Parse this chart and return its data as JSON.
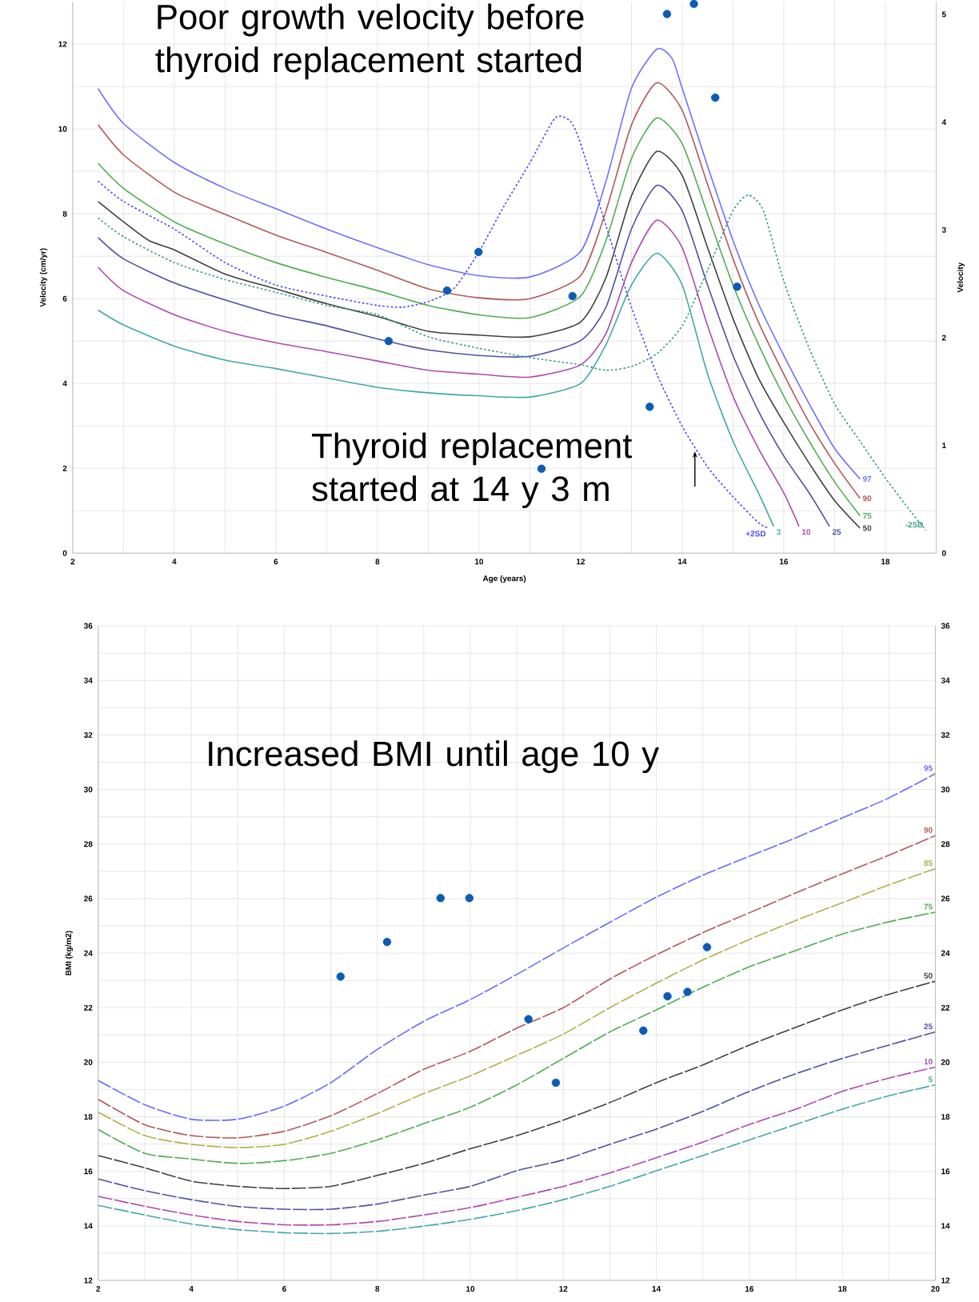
{
  "chart_data": [
    {
      "type": "line",
      "xlabel": "Age (years)",
      "ylabel": "Velocity (cm/yr)",
      "y2label": "Velocity",
      "annotations": [
        "Poor growth velocity before thyroid replacement started",
        {
          "text": "Thyroid replacement started at 14 y 3 m",
          "x": 14.25,
          "y": 2.4
        }
      ],
      "xlim": [
        2,
        19
      ],
      "ylim": [
        0,
        13
      ],
      "xticks": [
        2,
        4,
        6,
        8,
        10,
        12,
        14,
        16,
        18
      ],
      "yticks": [
        0,
        2,
        4,
        6,
        8,
        10,
        12
      ],
      "y2lim": [
        0,
        5.118
      ],
      "y2ticks": [
        0,
        1,
        2,
        3,
        4,
        5
      ],
      "grid": true,
      "series": [
        {
          "name": "97",
          "color": "#7070ff",
          "line_style": "solid",
          "x": [
            2.5,
            3,
            4,
            5,
            6,
            7,
            8,
            9,
            10,
            11,
            12,
            12.5,
            13,
            13.5,
            13.8,
            14,
            14.5,
            15,
            15.5,
            16,
            16.5,
            17,
            17.5
          ],
          "values": [
            10.95,
            10.13,
            9.21,
            8.6,
            8.12,
            7.64,
            7.2,
            6.8,
            6.54,
            6.51,
            7.11,
            8.77,
            10.96,
            11.88,
            11.66,
            10.96,
            9.12,
            7.37,
            5.88,
            4.66,
            3.52,
            2.47,
            1.75
          ]
        },
        {
          "name": "90",
          "color": "#b35959",
          "line_style": "solid",
          "x": [
            2.5,
            3,
            4,
            5,
            6,
            7,
            8,
            9,
            10,
            11,
            12,
            12.5,
            13,
            13.5,
            14,
            14.5,
            15,
            15.5,
            16,
            16.5,
            17,
            17.5
          ],
          "values": [
            10.1,
            9.39,
            8.51,
            7.99,
            7.5,
            7.09,
            6.67,
            6.23,
            6.02,
            6.0,
            6.54,
            8.07,
            10.09,
            11.09,
            10.44,
            8.69,
            6.94,
            5.45,
            4.22,
            3.08,
            2.12,
            1.29
          ]
        },
        {
          "name": "75",
          "color": "#4fae4f",
          "line_style": "solid",
          "x": [
            2.5,
            3,
            4,
            5,
            6,
            7,
            8,
            9,
            10,
            11,
            12,
            12.5,
            13,
            13.5,
            14,
            14.5,
            15,
            15.5,
            16,
            16.5,
            17,
            17.5
          ],
          "values": [
            9.19,
            8.6,
            7.81,
            7.29,
            6.85,
            6.5,
            6.19,
            5.84,
            5.62,
            5.55,
            6.06,
            7.37,
            9.3,
            10.26,
            9.65,
            7.99,
            6.32,
            4.92,
            3.7,
            2.64,
            1.68,
            0.88
          ]
        },
        {
          "name": "50",
          "color": "#404040",
          "line_style": "solid",
          "x": [
            2.5,
            3,
            3.5,
            4,
            5,
            6,
            7,
            8,
            9,
            10,
            11,
            12,
            12.5,
            13,
            13.5,
            14,
            14.5,
            15,
            15.5,
            16,
            16.5,
            17,
            17.5
          ],
          "values": [
            8.29,
            7.81,
            7.37,
            7.15,
            6.58,
            6.23,
            5.88,
            5.58,
            5.23,
            5.14,
            5.1,
            5.45,
            6.5,
            8.42,
            9.47,
            8.9,
            7.2,
            5.53,
            4.13,
            3.08,
            2.12,
            1.24,
            0.59
          ]
        },
        {
          "name": "25",
          "color": "#5050a8",
          "line_style": "solid",
          "x": [
            2.5,
            3,
            4,
            5,
            6,
            7,
            8,
            9,
            10,
            11,
            12,
            12.5,
            13,
            13.5,
            14,
            14.5,
            15,
            15.5,
            16,
            16.5,
            16.9
          ],
          "values": [
            7.44,
            6.94,
            6.37,
            5.97,
            5.62,
            5.36,
            5.05,
            4.79,
            4.66,
            4.64,
            5.01,
            5.8,
            7.64,
            8.67,
            8.07,
            6.32,
            4.66,
            3.35,
            2.29,
            1.42,
            0.63
          ]
        },
        {
          "name": "10",
          "color": "#b048b0",
          "line_style": "solid",
          "x": [
            2.5,
            3,
            4,
            5,
            6,
            7,
            8,
            9,
            10,
            11,
            12,
            12.5,
            13,
            13.5,
            14,
            14.5,
            15,
            15.5,
            16,
            16.3
          ],
          "values": [
            6.74,
            6.19,
            5.62,
            5.23,
            4.96,
            4.75,
            4.53,
            4.31,
            4.22,
            4.15,
            4.44,
            5.18,
            6.85,
            7.85,
            7.2,
            5.36,
            3.7,
            2.47,
            1.42,
            0.63
          ]
        },
        {
          "name": "3",
          "color": "#40a8a8",
          "line_style": "solid",
          "x": [
            2.5,
            3,
            4,
            5,
            6,
            7,
            8,
            9,
            10,
            11,
            12,
            12.5,
            13,
            13.5,
            14,
            14.5,
            15,
            15.5,
            15.8
          ],
          "values": [
            5.73,
            5.38,
            4.88,
            4.55,
            4.35,
            4.13,
            3.91,
            3.78,
            3.71,
            3.68,
            4.0,
            4.92,
            6.32,
            7.07,
            6.32,
            4.22,
            2.64,
            1.42,
            0.63
          ]
        },
        {
          "name": "+2SD",
          "color": "#4848ff",
          "line_style": "dotted",
          "x": [
            2.5,
            3,
            4,
            5,
            6,
            7,
            8,
            8.5,
            9,
            9.5,
            10,
            10.5,
            11,
            11.5,
            11.8,
            12,
            12.5,
            13,
            13.5,
            14,
            14.5,
            15,
            15.5,
            15.7
          ],
          "values": [
            8.77,
            8.29,
            7.64,
            6.85,
            6.32,
            6.06,
            5.84,
            5.8,
            5.93,
            6.23,
            7.11,
            8.2,
            9.2,
            10.26,
            10.18,
            9.65,
            7.72,
            5.8,
            4.22,
            2.99,
            2.03,
            1.33,
            0.72,
            0.59
          ]
        },
        {
          "name": "-2SD",
          "color": "#3a9a88",
          "line_style": "dotted",
          "x": [
            2.5,
            3,
            4,
            5,
            6,
            7,
            8,
            9,
            10,
            11,
            12,
            12.5,
            13,
            13.5,
            14,
            14.5,
            15,
            15.3,
            15.6,
            16,
            16.5,
            17,
            17.5,
            18,
            18.5,
            18.8
          ],
          "values": [
            7.9,
            7.46,
            6.85,
            6.45,
            6.15,
            5.84,
            5.62,
            5.1,
            4.83,
            4.61,
            4.44,
            4.31,
            4.4,
            4.7,
            5.36,
            6.67,
            8.07,
            8.44,
            8.07,
            6.41,
            4.83,
            3.52,
            2.64,
            1.77,
            0.98,
            0.54
          ]
        },
        {
          "type": "scatter",
          "marker": "circle",
          "color": "#0b5cb8",
          "x": [
            8.22,
            9.37,
            9.99,
            11.23,
            11.84,
            13.36,
            13.7,
            14.23,
            14.65,
            15.08
          ],
          "values": [
            5.0,
            6.19,
            7.1,
            1.99,
            6.06,
            3.45,
            12.71,
            12.95,
            10.74,
            6.28
          ]
        }
      ]
    },
    {
      "type": "line",
      "ylabel": "BMI (kg/m2)",
      "annotations": [
        "Increased BMI until age 10 y"
      ],
      "xlim": [
        2,
        20
      ],
      "ylim": [
        12,
        36
      ],
      "xticks": [
        2,
        4,
        6,
        8,
        10,
        12,
        14,
        16,
        18,
        20
      ],
      "yticks": [
        12,
        14,
        16,
        18,
        20,
        22,
        24,
        26,
        28,
        30,
        32,
        34,
        36
      ],
      "y2lim": [
        12,
        36
      ],
      "y2ticks": [
        12,
        14,
        16,
        18,
        20,
        22,
        24,
        26,
        28,
        30,
        32,
        34,
        36
      ],
      "grid": true,
      "line_style": "dashed",
      "x": [
        2,
        3,
        4,
        5,
        6,
        7,
        8,
        9,
        10,
        11,
        12,
        13,
        14,
        15,
        16,
        17,
        18,
        19,
        20
      ],
      "series": [
        {
          "name": "95",
          "color": "#6a6aff",
          "values": [
            19.33,
            18.44,
            17.91,
            17.91,
            18.39,
            19.25,
            20.47,
            21.5,
            22.3,
            23.22,
            24.19,
            25.13,
            26.05,
            26.86,
            27.55,
            28.23,
            28.96,
            29.69,
            30.58
          ]
        },
        {
          "name": "90",
          "color": "#b35959",
          "values": [
            18.64,
            17.71,
            17.31,
            17.23,
            17.47,
            18.04,
            18.85,
            19.74,
            20.4,
            21.25,
            22.0,
            23.05,
            23.94,
            24.75,
            25.48,
            26.21,
            26.91,
            27.59,
            28.31
          ]
        },
        {
          "name": "85",
          "color": "#b0b048",
          "values": [
            18.17,
            17.31,
            16.99,
            16.87,
            16.99,
            17.47,
            18.12,
            18.85,
            19.5,
            20.25,
            21.03,
            22.0,
            22.9,
            23.75,
            24.5,
            25.2,
            25.85,
            26.5,
            27.1
          ]
        },
        {
          "name": "75",
          "color": "#4fae4f",
          "values": [
            17.53,
            16.66,
            16.45,
            16.29,
            16.39,
            16.66,
            17.15,
            17.75,
            18.35,
            19.17,
            20.14,
            21.11,
            21.92,
            22.75,
            23.5,
            24.1,
            24.7,
            25.15,
            25.5
          ]
        },
        {
          "name": "50",
          "color": "#404040",
          "values": [
            16.58,
            16.13,
            15.64,
            15.45,
            15.37,
            15.45,
            15.85,
            16.29,
            16.83,
            17.31,
            17.88,
            18.52,
            19.25,
            19.9,
            20.63,
            21.28,
            21.92,
            22.49,
            22.97
          ]
        },
        {
          "name": "25",
          "color": "#5050a8",
          "values": [
            15.72,
            15.29,
            14.96,
            14.71,
            14.61,
            14.61,
            14.8,
            15.13,
            15.45,
            16.02,
            16.42,
            16.99,
            17.55,
            18.2,
            18.93,
            19.58,
            20.14,
            20.63,
            21.11
          ]
        },
        {
          "name": "10",
          "color": "#b048b0",
          "values": [
            15.08,
            14.72,
            14.4,
            14.16,
            14.04,
            14.04,
            14.16,
            14.4,
            14.67,
            15.05,
            15.45,
            15.94,
            16.5,
            17.07,
            17.72,
            18.28,
            18.93,
            19.42,
            19.82
          ]
        },
        {
          "name": "5",
          "color": "#40a8a8",
          "values": [
            14.75,
            14.4,
            14.07,
            13.86,
            13.75,
            13.72,
            13.8,
            13.99,
            14.24,
            14.56,
            14.96,
            15.45,
            16.02,
            16.58,
            17.15,
            17.72,
            18.28,
            18.77,
            19.17
          ]
        },
        {
          "type": "scatter",
          "marker": "circle",
          "color": "#0b5cb8",
          "x": [
            7.21,
            8.21,
            9.36,
            9.98,
            11.25,
            11.84,
            13.72,
            14.24,
            14.67,
            15.09
          ],
          "values": [
            23.14,
            24.41,
            26.02,
            26.02,
            21.58,
            19.25,
            21.16,
            22.42,
            22.58,
            24.22
          ]
        }
      ]
    }
  ]
}
